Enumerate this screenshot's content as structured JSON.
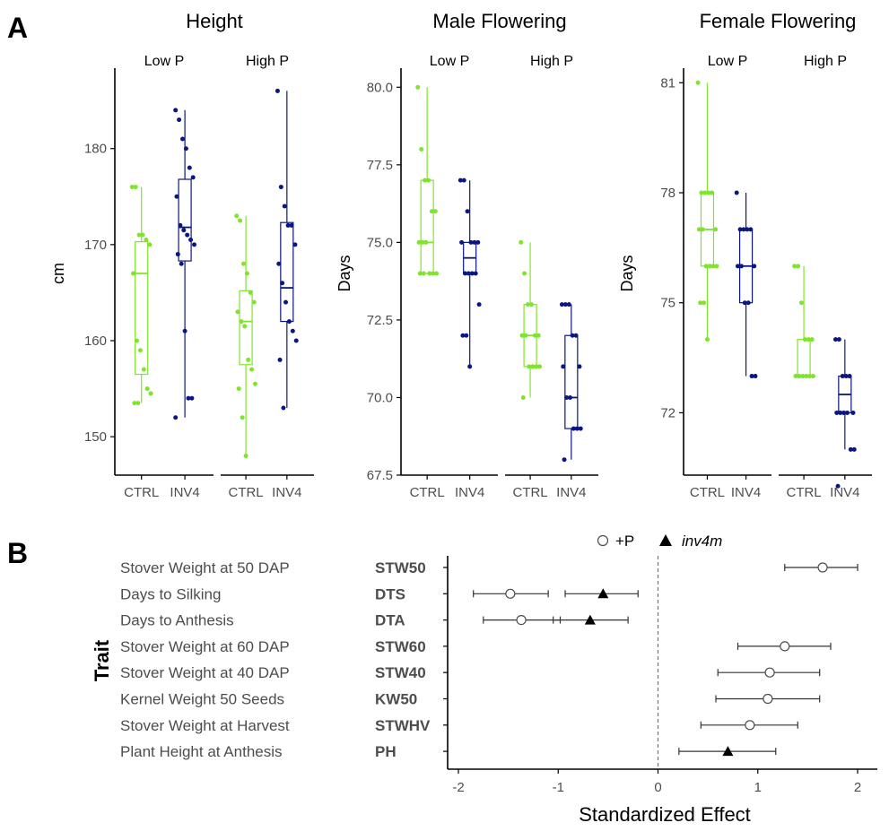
{
  "panel_labels": {
    "a": "A",
    "b": "B"
  },
  "colors": {
    "ctrl": "#7fe52b",
    "inv4": "#0b1780",
    "axis": "#000000",
    "tick_text": "#4d4d4d"
  },
  "chart_data": [
    {
      "type": "box",
      "title": "Height",
      "ylabel": "cm",
      "ylim": [
        146,
        188
      ],
      "yticks": [
        150,
        160,
        170,
        180
      ],
      "facets": [
        "Low P",
        "High P"
      ],
      "categories": [
        "CTRL",
        "INV4"
      ],
      "groups": [
        {
          "facet": "Low P",
          "genotype": "CTRL",
          "box": {
            "q1": 156.5,
            "median": 167,
            "q3": 170.3,
            "min": 153.5,
            "max": 176
          },
          "points": [
            176,
            176,
            171,
            171,
            170.5,
            170,
            167,
            160,
            159,
            157,
            155,
            154.5,
            153.5,
            153.5
          ]
        },
        {
          "facet": "Low P",
          "genotype": "INV4",
          "box": {
            "q1": 168.3,
            "median": 171.8,
            "q3": 176.8,
            "min": 152,
            "max": 184
          },
          "points": [
            184,
            183,
            181,
            180,
            178,
            177,
            175,
            172,
            171.5,
            171,
            170.5,
            170,
            169,
            168,
            161,
            154,
            154,
            152
          ]
        },
        {
          "facet": "High P",
          "genotype": "CTRL",
          "box": {
            "q1": 157.5,
            "median": 162,
            "q3": 165.2,
            "min": 148,
            "max": 173
          },
          "points": [
            173,
            172.5,
            168,
            167,
            165,
            164,
            163,
            162,
            161.5,
            158,
            157,
            155.5,
            155,
            152,
            148
          ]
        },
        {
          "facet": "High P",
          "genotype": "INV4",
          "box": {
            "q1": 162,
            "median": 165.5,
            "q3": 172.3,
            "min": 153,
            "max": 186
          },
          "points": [
            186,
            176,
            174,
            172,
            172,
            170,
            168,
            166,
            164,
            162,
            161,
            160,
            158,
            153
          ]
        }
      ]
    },
    {
      "type": "box",
      "title": "Male Flowering",
      "ylabel": "Days",
      "ylim": [
        67.5,
        80.5
      ],
      "yticks": [
        67.5,
        70.0,
        72.5,
        75.0,
        77.5,
        80.0
      ],
      "facets": [
        "Low P",
        "High P"
      ],
      "categories": [
        "CTRL",
        "INV4"
      ],
      "groups": [
        {
          "facet": "Low P",
          "genotype": "CTRL",
          "box": {
            "q1": 74,
            "median": 75,
            "q3": 77,
            "min": 74,
            "max": 80
          },
          "points": [
            80,
            78,
            77,
            77,
            76,
            76,
            75,
            75,
            75,
            74,
            74,
            74,
            74,
            74
          ]
        },
        {
          "facet": "Low P",
          "genotype": "INV4",
          "box": {
            "q1": 74,
            "median": 74.5,
            "q3": 75,
            "min": 71,
            "max": 77
          },
          "points": [
            77,
            77,
            76,
            75,
            75,
            75,
            75,
            74,
            74,
            74,
            74,
            73,
            72,
            72,
            71
          ]
        },
        {
          "facet": "High P",
          "genotype": "CTRL",
          "box": {
            "q1": 71,
            "median": 72,
            "q3": 73,
            "min": 70,
            "max": 75
          },
          "points": [
            75,
            74,
            73,
            73,
            72,
            72,
            72,
            72,
            71,
            71,
            71,
            71,
            70
          ]
        },
        {
          "facet": "High P",
          "genotype": "INV4",
          "box": {
            "q1": 69,
            "median": 70,
            "q3": 72,
            "min": 68,
            "max": 73
          },
          "points": [
            73,
            73,
            73,
            72,
            72,
            71,
            71,
            70,
            70,
            69,
            69,
            69,
            68
          ]
        }
      ]
    },
    {
      "type": "box",
      "title": "Female Flowering",
      "ylabel": "Days",
      "ylim": [
        70.3,
        81.3
      ],
      "yticks": [
        72,
        75,
        78,
        81
      ],
      "facets": [
        "Low P",
        "High P"
      ],
      "categories": [
        "CTRL",
        "INV4"
      ],
      "groups": [
        {
          "facet": "Low P",
          "genotype": "CTRL",
          "box": {
            "q1": 76,
            "median": 77,
            "q3": 78,
            "min": 74,
            "max": 81
          },
          "points": [
            81,
            78,
            78,
            78,
            78,
            77,
            77,
            77,
            76,
            76,
            76,
            76,
            75,
            75,
            74
          ]
        },
        {
          "facet": "Low P",
          "genotype": "INV4",
          "box": {
            "q1": 75,
            "median": 76,
            "q3": 77,
            "min": 73,
            "max": 78
          },
          "points": [
            78,
            77,
            77,
            77,
            77,
            76,
            76,
            76,
            75,
            75,
            73,
            73
          ]
        },
        {
          "facet": "High P",
          "genotype": "CTRL",
          "box": {
            "q1": 73,
            "median": 73,
            "q3": 74,
            "min": 73,
            "max": 76
          },
          "points": [
            76,
            76,
            75,
            74,
            74,
            74,
            73,
            73,
            73,
            73,
            73,
            73
          ]
        },
        {
          "facet": "High P",
          "genotype": "INV4",
          "box": {
            "q1": 72,
            "median": 72.5,
            "q3": 73,
            "min": 71,
            "max": 74
          },
          "points": [
            74,
            74,
            73,
            73,
            73,
            72,
            72,
            72,
            72,
            72,
            71,
            71,
            70
          ]
        }
      ]
    },
    {
      "type": "forest",
      "ylabel": "Trait",
      "xlabel": "Standardized Effect",
      "xlim": [
        -2.1,
        2.2
      ],
      "xticks": [
        -2,
        -1,
        0,
        1,
        2
      ],
      "legend": {
        "plus_p": "+P",
        "inv4m": "inv4m"
      },
      "traits": [
        {
          "name": "Stover Weight at 50 DAP",
          "abbr": "STW50",
          "effects": [
            {
              "term": "+P",
              "est": 1.65,
              "lo": 1.27,
              "hi": 2.0
            }
          ]
        },
        {
          "name": "Days to Silking",
          "abbr": "DTS",
          "effects": [
            {
              "term": "+P",
              "est": -1.48,
              "lo": -1.85,
              "hi": -1.1
            },
            {
              "term": "inv4m",
              "est": -0.55,
              "lo": -0.93,
              "hi": -0.2
            }
          ]
        },
        {
          "name": "Days to Anthesis",
          "abbr": "DTA",
          "effects": [
            {
              "term": "+P",
              "est": -1.37,
              "lo": -1.75,
              "hi": -0.98
            },
            {
              "term": "inv4m",
              "est": -0.68,
              "lo": -1.05,
              "hi": -0.3
            }
          ]
        },
        {
          "name": "Stover Weight at 60 DAP",
          "abbr": "STW60",
          "effects": [
            {
              "term": "+P",
              "est": 1.27,
              "lo": 0.8,
              "hi": 1.73
            }
          ]
        },
        {
          "name": "Stover Weight at 40 DAP",
          "abbr": "STW40",
          "effects": [
            {
              "term": "+P",
              "est": 1.12,
              "lo": 0.6,
              "hi": 1.62
            }
          ]
        },
        {
          "name": "Kernel Weight 50 Seeds",
          "abbr": "KW50",
          "effects": [
            {
              "term": "+P",
              "est": 1.1,
              "lo": 0.58,
              "hi": 1.62
            }
          ]
        },
        {
          "name": "Stover Weight at Harvest",
          "abbr": "STWHV",
          "effects": [
            {
              "term": "+P",
              "est": 0.92,
              "lo": 0.43,
              "hi": 1.4
            }
          ]
        },
        {
          "name": "Plant Height at Anthesis",
          "abbr": "PH",
          "effects": [
            {
              "term": "inv4m",
              "est": 0.7,
              "lo": 0.21,
              "hi": 1.18
            }
          ]
        }
      ]
    }
  ]
}
